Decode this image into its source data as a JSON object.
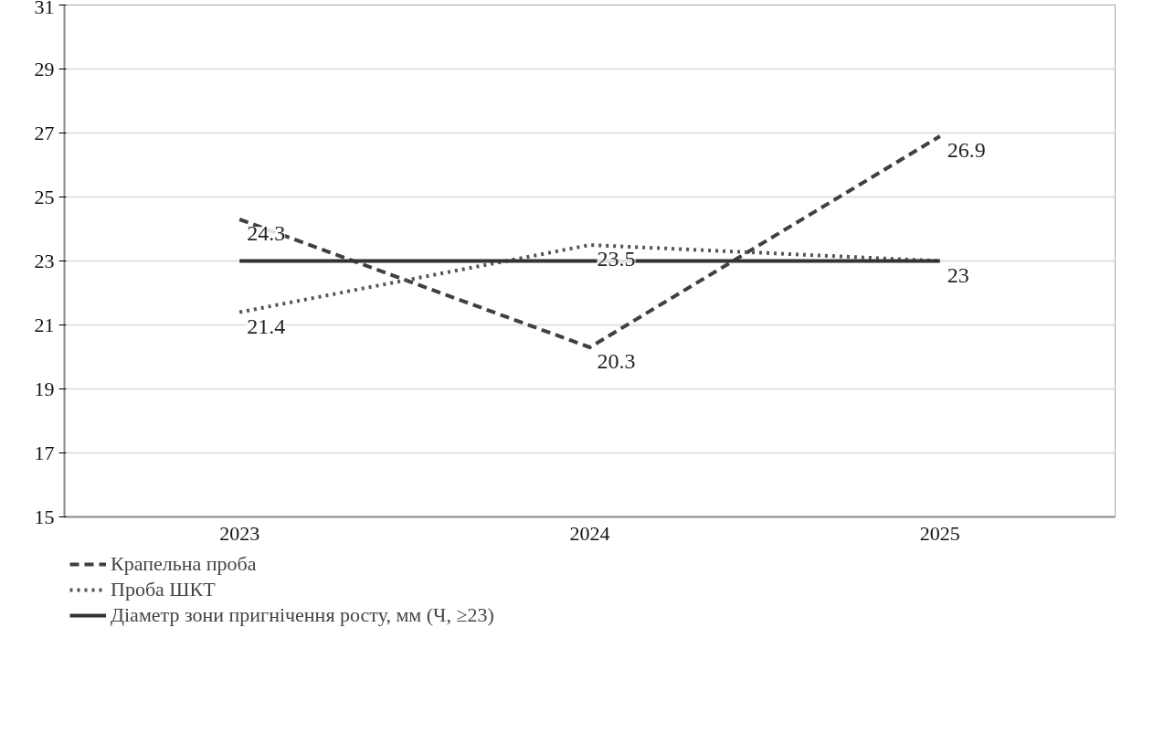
{
  "chart_data": {
    "type": "line",
    "categories": [
      "2023",
      "2024",
      "2025"
    ],
    "series": [
      {
        "name": "Крапельна проба",
        "color": "#404040",
        "line_style": "dashed",
        "values": [
          24.3,
          20.3,
          26.9
        ],
        "value_labels": [
          "24.3",
          "20.3",
          "26.9"
        ]
      },
      {
        "name": "Проба ШКТ",
        "color": "#555555",
        "line_style": "dotted",
        "values": [
          21.4,
          23.5,
          23
        ],
        "value_labels": [
          "21.4",
          "23.5",
          "23"
        ]
      },
      {
        "name": "Діаметр зони пригнічення росту, мм (Ч, ≥23)",
        "color": "#333333",
        "line_style": "solid",
        "values": [
          23,
          23,
          23
        ]
      }
    ],
    "ylim": [
      15,
      31
    ],
    "yticks": [
      15,
      17,
      19,
      21,
      23,
      25,
      27,
      29,
      31
    ],
    "grid": "y",
    "legend": "bottom left"
  }
}
